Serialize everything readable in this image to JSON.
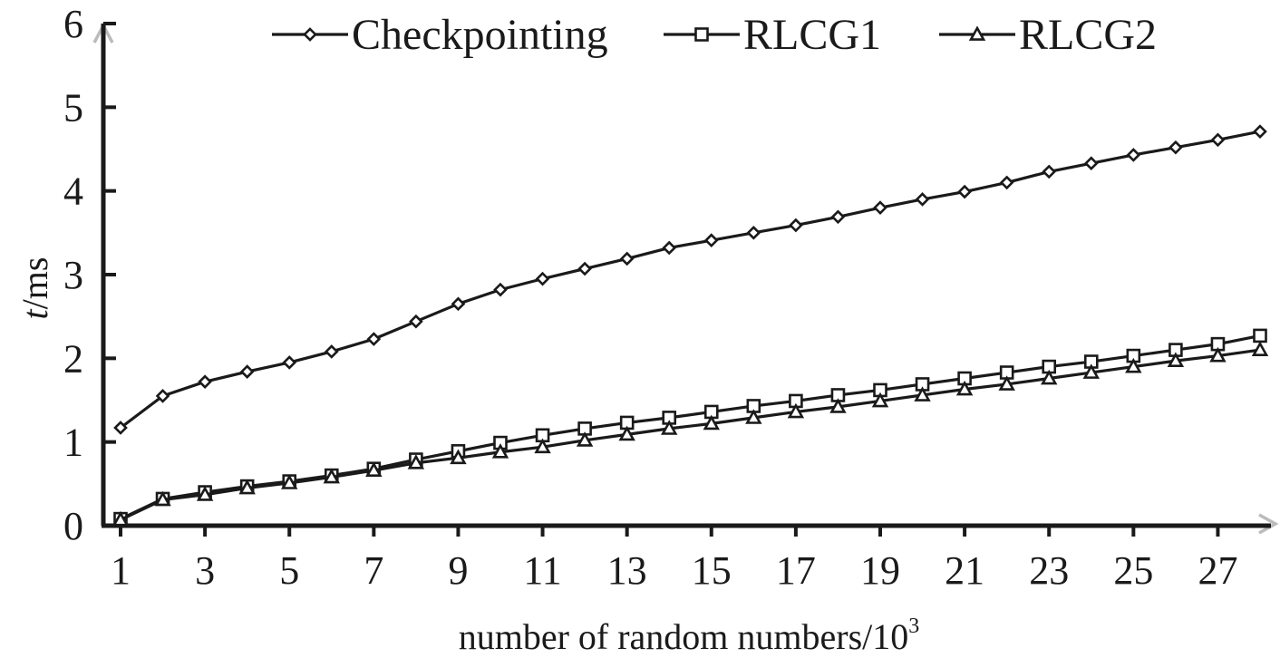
{
  "chart_data": {
    "type": "line",
    "xlabel": "number of random numbers/10",
    "xlabel_sup": "3",
    "ylabel_italic": "t",
    "ylabel_rest": "/ms",
    "xlim": [
      0.7,
      27.6
    ],
    "ylim": [
      0,
      6
    ],
    "x_ticks": [
      "1",
      "3",
      "5",
      "7",
      "9",
      "11",
      "13",
      "15",
      "17",
      "19",
      "21",
      "23",
      "25",
      "27"
    ],
    "y_ticks": [
      "0",
      "1",
      "2",
      "3",
      "4",
      "5",
      "6"
    ],
    "legend_position": "top",
    "x": [
      1,
      2,
      3,
      4,
      5,
      6,
      7,
      8,
      9,
      10,
      11,
      12,
      13,
      14,
      15,
      16,
      17,
      18,
      19,
      20,
      21,
      22,
      23,
      24,
      25,
      26,
      27,
      28
    ],
    "series": [
      {
        "name": "Checkpointing",
        "marker": "diamond",
        "values": [
          1.17,
          1.55,
          1.72,
          1.84,
          1.95,
          2.08,
          2.23,
          2.44,
          2.65,
          2.82,
          2.95,
          3.07,
          3.19,
          3.32,
          3.41,
          3.5,
          3.59,
          3.69,
          3.8,
          3.9,
          3.99,
          4.1,
          4.23,
          4.33,
          4.43,
          4.52,
          4.61,
          4.71
        ]
      },
      {
        "name": "RLCG1",
        "marker": "square",
        "values": [
          0.08,
          0.32,
          0.4,
          0.47,
          0.53,
          0.6,
          0.68,
          0.79,
          0.89,
          0.99,
          1.08,
          1.16,
          1.23,
          1.29,
          1.36,
          1.43,
          1.49,
          1.56,
          1.62,
          1.69,
          1.76,
          1.83,
          1.9,
          1.96,
          2.03,
          2.1,
          2.17,
          2.27
        ]
      },
      {
        "name": "RLCG2",
        "marker": "triangle",
        "values": [
          0.07,
          0.31,
          0.37,
          0.45,
          0.51,
          0.58,
          0.66,
          0.75,
          0.81,
          0.88,
          0.94,
          1.02,
          1.09,
          1.16,
          1.22,
          1.29,
          1.36,
          1.42,
          1.49,
          1.56,
          1.63,
          1.69,
          1.76,
          1.83,
          1.9,
          1.97,
          2.03,
          2.1
        ]
      }
    ]
  }
}
